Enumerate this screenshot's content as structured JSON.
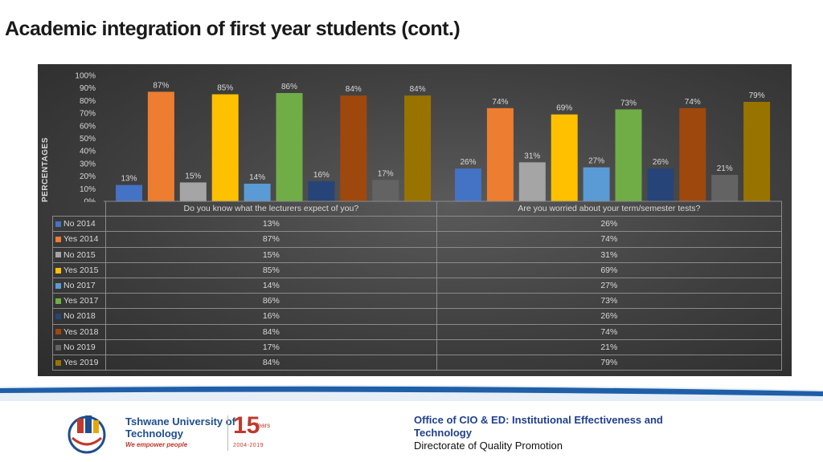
{
  "title": "Academic integration of first year students (cont.)",
  "chart_data": {
    "type": "bar",
    "ylabel": "PERCENTAGES",
    "ylim": [
      0,
      100
    ],
    "yticks": [
      "0%",
      "10%",
      "20%",
      "30%",
      "40%",
      "50%",
      "60%",
      "70%",
      "80%",
      "90%",
      "100%"
    ],
    "categories": [
      "Do you know what the lecturers expect of you?",
      "Are you worried about your term/semester tests?"
    ],
    "series": [
      {
        "name": "No 2014",
        "color": "#4472c4",
        "values": [
          13,
          26
        ],
        "labels": [
          "13%",
          "26%"
        ]
      },
      {
        "name": "Yes 2014",
        "color": "#ed7d31",
        "values": [
          87,
          74
        ],
        "labels": [
          "87%",
          "74%"
        ]
      },
      {
        "name": "No 2015",
        "color": "#a5a5a5",
        "values": [
          15,
          31
        ],
        "labels": [
          "15%",
          "31%"
        ]
      },
      {
        "name": "Yes 2015",
        "color": "#ffc000",
        "values": [
          85,
          69
        ],
        "labels": [
          "85%",
          "69%"
        ]
      },
      {
        "name": "No 2017",
        "color": "#5b9bd5",
        "values": [
          14,
          27
        ],
        "labels": [
          "14%",
          "27%"
        ]
      },
      {
        "name": "Yes 2017",
        "color": "#70ad47",
        "values": [
          86,
          73
        ],
        "labels": [
          "86%",
          "73%"
        ]
      },
      {
        "name": "No 2018",
        "color": "#264478",
        "values": [
          16,
          26
        ],
        "labels": [
          "16%",
          "26%"
        ]
      },
      {
        "name": "Yes 2018",
        "color": "#9e480e",
        "values": [
          84,
          74
        ],
        "labels": [
          "84%",
          "74%"
        ]
      },
      {
        "name": "No 2019",
        "color": "#636363",
        "values": [
          17,
          21
        ],
        "labels": [
          "17%",
          "21%"
        ]
      },
      {
        "name": "Yes 2019",
        "color": "#997300",
        "values": [
          84,
          79
        ],
        "labels": [
          "84%",
          "79%"
        ]
      }
    ],
    "legend": "data-table"
  },
  "footer": {
    "office": "Office of CIO & ED: Institutional  Effectiveness and Technology",
    "directorate": "Directorate of Quality Promotion",
    "logo_name": "Tshwane University of Technology",
    "logo_tagline": "We empower people",
    "anniversary": "15",
    "anniversary_unit": "Years",
    "anniversary_span": "2004-2019"
  }
}
